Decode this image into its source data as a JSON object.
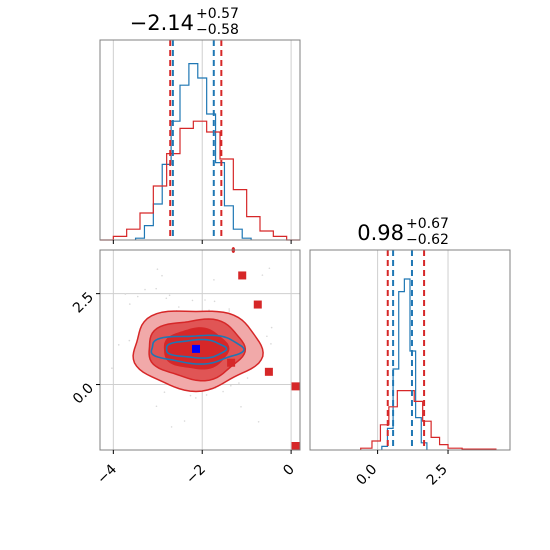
{
  "colors": {
    "blue": "#1f77b4",
    "red": "#d62728",
    "red_fill_light": "#f1a9a9",
    "red_fill_mid": "#e05555",
    "red_fill_dark": "#d62728",
    "grid": "#cfcfcf",
    "frame": "#808080"
  },
  "chart_data": [
    {
      "type": "histogram",
      "panel": "top-left",
      "title": {
        "main": "−2.14",
        "sup": "+0.57",
        "sub": "−0.58"
      },
      "x_range": [
        -4.3,
        0.2
      ],
      "y_range": [
        0,
        1
      ],
      "grid": true,
      "x_ticks": [
        -4,
        -2,
        0
      ],
      "series": [
        {
          "name": "",
          "color": "blue",
          "bins": [
            -3.5,
            -3.3,
            -3.1,
            -2.9,
            -2.7,
            -2.5,
            -2.3,
            -2.1,
            -1.9,
            -1.7,
            -1.5,
            -1.3,
            -1.1,
            -0.9
          ],
          "values": [
            0.01,
            0.08,
            0.2,
            0.42,
            0.66,
            0.86,
            0.98,
            0.9,
            0.7,
            0.43,
            0.19,
            0.06,
            0.01
          ]
        },
        {
          "name": "",
          "color": "red",
          "bins": [
            -4.3,
            -4.0,
            -3.7,
            -3.4,
            -3.1,
            -2.8,
            -2.5,
            -2.2,
            -1.9,
            -1.6,
            -1.3,
            -1.0,
            -0.7,
            -0.4,
            -0.1,
            0.2
          ],
          "values": [
            0.0,
            0.02,
            0.06,
            0.15,
            0.3,
            0.48,
            0.62,
            0.66,
            0.6,
            0.45,
            0.28,
            0.13,
            0.05,
            0.02,
            0.0
          ]
        }
      ],
      "quantile_lines": [
        {
          "color": "red",
          "x": [
            -2.72,
            -1.57
          ]
        },
        {
          "color": "blue",
          "x": [
            -2.66,
            -1.74
          ]
        }
      ]
    },
    {
      "type": "contour",
      "panel": "bottom-left",
      "x_range": [
        -4.3,
        0.2
      ],
      "y_range": [
        -1.8,
        3.7
      ],
      "grid": true,
      "x_ticks": [
        -4,
        -2,
        0
      ],
      "y_ticks": [
        0.0,
        2.5
      ],
      "x_tick_labels": [
        "−4",
        "−2",
        "0"
      ],
      "y_tick_labels": [
        "0.0",
        "2.5"
      ],
      "center": {
        "x": -2.14,
        "y": 0.98
      },
      "red_points": [
        {
          "x": -1.1,
          "y": 3.0
        },
        {
          "x": -0.75,
          "y": 2.2
        },
        {
          "x": -1.35,
          "y": 0.6
        },
        {
          "x": -0.5,
          "y": 0.35
        },
        {
          "x": 0.1,
          "y": -0.05
        },
        {
          "x": 0.1,
          "y": -2.2
        }
      ],
      "blue_point": {
        "x": -2.14,
        "y": 0.98
      },
      "red_small_mark": {
        "x": -1.3,
        "y": 3.7
      }
    },
    {
      "type": "histogram",
      "panel": "bottom-right",
      "title": {
        "main": "0.98",
        "sup": "+0.67",
        "sub": "−0.62"
      },
      "x_range": [
        -2.4,
        4.7
      ],
      "y_range": [
        0,
        1
      ],
      "grid": true,
      "x_ticks": [
        0.0,
        2.5
      ],
      "x_tick_labels": [
        "0.0",
        "2.5"
      ],
      "series": [
        {
          "name": "",
          "color": "blue",
          "bins": [
            0.15,
            0.35,
            0.55,
            0.75,
            0.95,
            1.15,
            1.35,
            1.55,
            1.75
          ],
          "values": [
            0.02,
            0.12,
            0.45,
            0.88,
            0.95,
            0.55,
            0.18,
            0.04
          ]
        },
        {
          "name": "",
          "color": "red",
          "bins": [
            -0.6,
            -0.2,
            0.1,
            0.4,
            0.7,
            1.0,
            1.3,
            1.6,
            1.9,
            2.2,
            2.5,
            3.0,
            4.2
          ],
          "values": [
            0.01,
            0.05,
            0.14,
            0.24,
            0.33,
            0.33,
            0.27,
            0.16,
            0.07,
            0.03,
            0.01,
            0.005
          ]
        }
      ],
      "quantile_lines": [
        {
          "color": "red",
          "x": [
            0.36,
            1.65
          ]
        },
        {
          "color": "blue",
          "x": [
            0.55,
            1.22
          ]
        }
      ]
    }
  ]
}
